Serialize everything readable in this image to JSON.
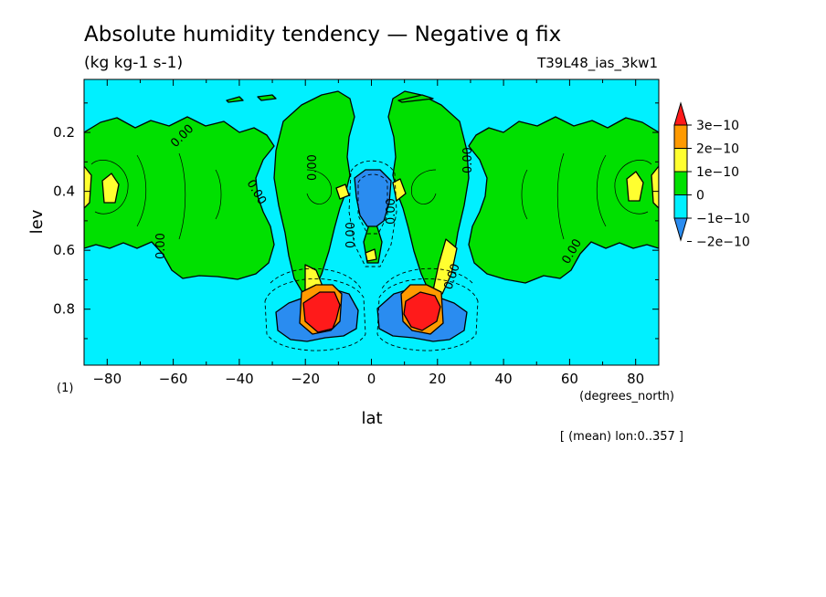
{
  "chart_data": {
    "type": "heatmap",
    "title": "Absolute humidity tendency — Negative q fix",
    "units": "(kg kg-1 s-1)",
    "experiment": "T39L48_ias_3kw1",
    "xlabel": "lat",
    "xunits": "(degrees_north)",
    "ylabel": "lev",
    "yunits": "(1)",
    "averaging_note": "[ (mean) lon:0..357 ]",
    "xlim": [
      -87,
      87
    ],
    "ylim": [
      0.99,
      0.02
    ],
    "y_axis_inverted": true,
    "grid": false,
    "legend_position": "right",
    "x_ticks": [
      -80,
      -60,
      -40,
      -20,
      0,
      20,
      40,
      60,
      80
    ],
    "x_tick_labels": [
      "−80",
      "−60",
      "−40",
      "−20",
      "0",
      "20",
      "40",
      "60",
      "80"
    ],
    "y_ticks": [
      0.2,
      0.4,
      0.6,
      0.8
    ],
    "y_tick_labels": [
      "0.2",
      "0.4",
      "0.6",
      "0.8"
    ],
    "colorbar": {
      "levels": [
        "3e−10",
        "2e−10",
        "1e−10",
        "0",
        "−1e−10",
        "−2e−10"
      ],
      "level_values": [
        3e-10,
        2e-10,
        1e-10,
        0,
        -1e-10,
        -2e-10
      ],
      "colors": [
        "#ff1a1a",
        "#ff9a00",
        "#ffff30",
        "#00e000",
        "#00f0ff",
        "#2a8cf0"
      ],
      "extend": "both"
    },
    "fill_colors": {
      "red": "#ff1a1a",
      "orange": "#ff9a00",
      "yellow": "#ffff30",
      "green": "#00e000",
      "cyan": "#00f0ff",
      "blue": "#2a8cf0"
    },
    "contour_labels": [
      "0.00",
      "0.00",
      "0.00",
      "0.00",
      "0.00",
      "0.00",
      "0.00",
      "0.00",
      "0.00"
    ],
    "features": [
      {
        "region": "high-latitude bands",
        "lat": [
          -87,
          -35
        ],
        "lev": [
          0.15,
          0.65
        ],
        "sign": "positive",
        "max_class": "1e-10 to 2e-10"
      },
      {
        "region": "high-latitude bands",
        "lat": [
          35,
          87
        ],
        "lev": [
          0.15,
          0.65
        ],
        "sign": "positive",
        "max_class": "1e-10 to 2e-10"
      },
      {
        "region": "subtropical lower troposphere",
        "lat": [
          -22,
          -10
        ],
        "lev": [
          0.8,
          0.9
        ],
        "sign": "positive",
        "max_class": ">3e-10"
      },
      {
        "region": "subtropical lower troposphere",
        "lat": [
          10,
          22
        ],
        "lev": [
          0.8,
          0.9
        ],
        "sign": "positive",
        "max_class": ">3e-10"
      },
      {
        "region": "flanking minima",
        "lat": [
          -27,
          -5
        ],
        "lev": [
          0.78,
          0.92
        ],
        "sign": "negative",
        "max_class": "<-2e-10"
      },
      {
        "region": "flanking minima",
        "lat": [
          5,
          27
        ],
        "lev": [
          0.78,
          0.92
        ],
        "sign": "negative",
        "max_class": "<-2e-10"
      },
      {
        "region": "equatorial mid troposphere",
        "lat": [
          -5,
          5
        ],
        "lev": [
          0.35,
          0.55
        ],
        "sign": "negative",
        "max_class": "-2e-10 to -1e-10"
      }
    ]
  }
}
